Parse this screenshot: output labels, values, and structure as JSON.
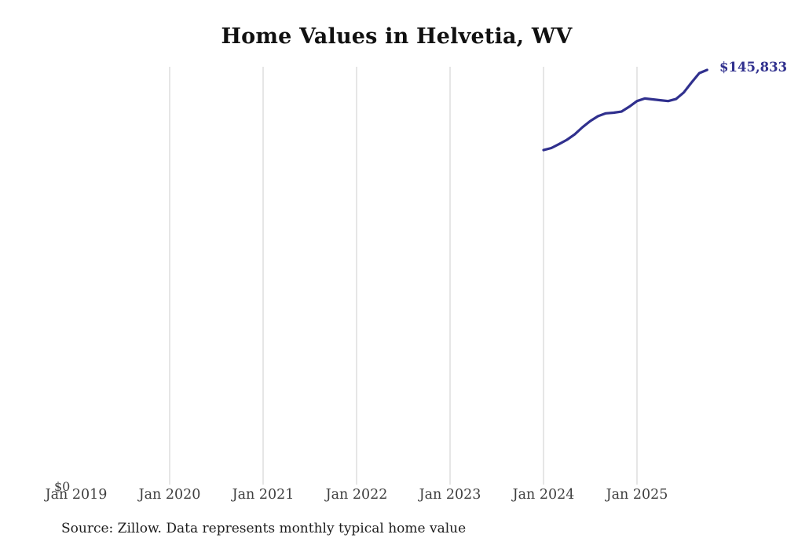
{
  "title": "Home Values in Helvetia, WV",
  "source_note": "Source: Zillow. Data represents monthly typical home value",
  "latest_value_label": "$145,833",
  "y_axis": {
    "zero_label": "$0"
  },
  "x_axis": {
    "ticks": [
      "Jan 2019",
      "Jan 2020",
      "Jan 2021",
      "Jan 2022",
      "Jan 2023",
      "Jan 2024",
      "Jan 2025"
    ]
  },
  "colors": {
    "line": "#30308e",
    "value_label": "#30308e",
    "gridline": "#cccccc",
    "axis_text": "#3f3f3f",
    "title_text": "#111111",
    "source_text": "#1d1d1d"
  },
  "chart_data": {
    "type": "line",
    "title": "Home Values in Helvetia, WV",
    "series_name": "Typical home value",
    "x": [
      "2024-01",
      "2024-02",
      "2024-03",
      "2024-04",
      "2024-05",
      "2024-06",
      "2024-07",
      "2024-08",
      "2024-09",
      "2024-10",
      "2024-11",
      "2024-12",
      "2025-01",
      "2025-02",
      "2025-03",
      "2025-04",
      "2025-05",
      "2025-06",
      "2025-07",
      "2025-08",
      "2025-09",
      "2025-10"
    ],
    "values": [
      117700,
      118400,
      119800,
      121300,
      123200,
      125700,
      127900,
      129600,
      130600,
      130800,
      131200,
      132900,
      134900,
      135800,
      135500,
      135200,
      134900,
      135600,
      137900,
      141400,
      144700,
      145833
    ],
    "xlabel": "",
    "ylabel": "",
    "x_tick_labels": [
      "Jan 2019",
      "Jan 2020",
      "Jan 2021",
      "Jan 2022",
      "Jan 2023",
      "Jan 2024",
      "Jan 2025"
    ],
    "ylim": [
      0,
      147000
    ],
    "grid": "vertical-only",
    "legend": "none",
    "last_point_label": "$145,833"
  }
}
